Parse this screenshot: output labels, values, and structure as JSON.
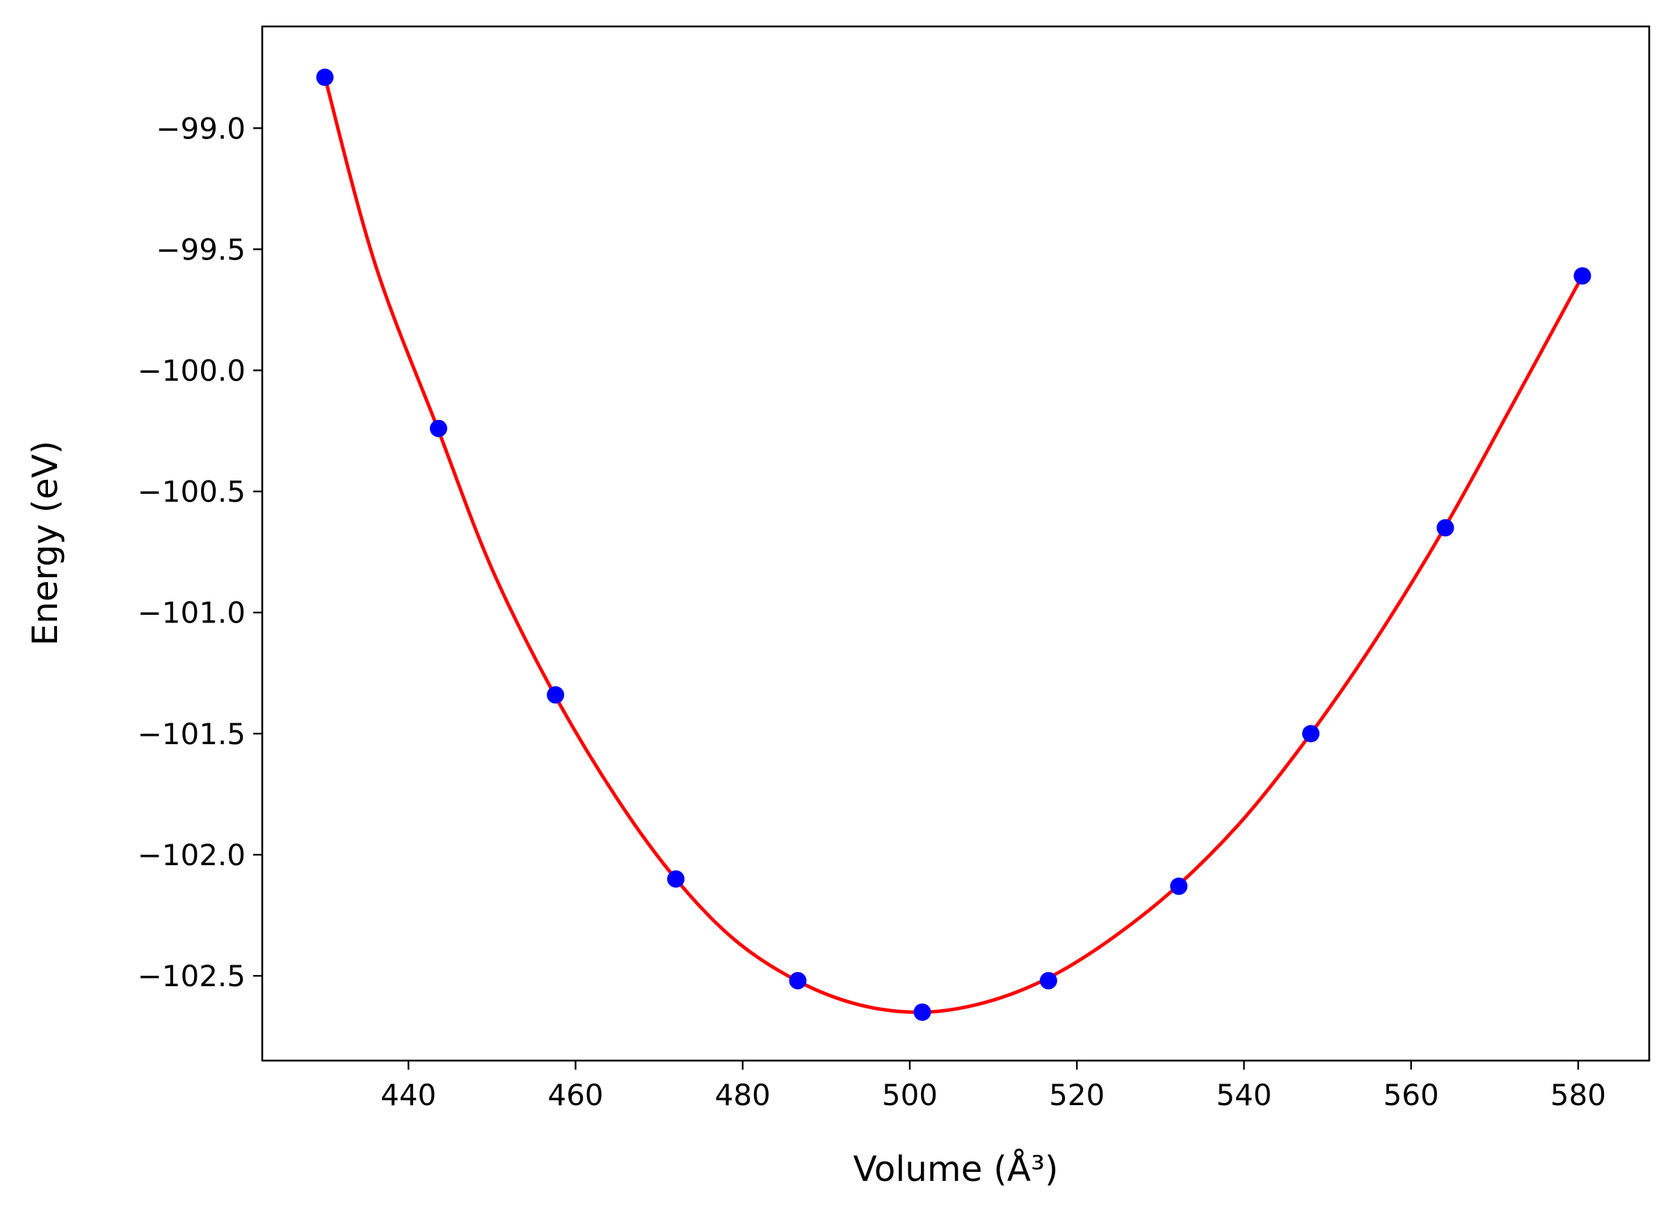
{
  "chart_data": {
    "type": "line",
    "xlabel": "Volume (Å³)",
    "ylabel": "Energy (eV)",
    "xlim": [
      422.5,
      588.5
    ],
    "ylim": [
      -102.85,
      -98.58
    ],
    "x_ticks": [
      440,
      460,
      480,
      500,
      520,
      540,
      560,
      580
    ],
    "x_tick_labels": [
      "440",
      "460",
      "480",
      "500",
      "520",
      "540",
      "560",
      "580"
    ],
    "y_ticks": [
      -99.0,
      -99.5,
      -100.0,
      -100.5,
      -101.0,
      -101.5,
      -102.0,
      -102.5
    ],
    "y_tick_labels": [
      "−99.0",
      "−99.5",
      "−100.0",
      "−100.5",
      "−101.0",
      "−101.5",
      "−102.0",
      "−102.5"
    ],
    "grid": false,
    "series": [
      {
        "kind": "line",
        "color": "#ff0000",
        "x": [
          430.0,
          436.0,
          443.5,
          450.0,
          457.5,
          465.0,
          472.0,
          479.0,
          486.5,
          494.0,
          501.5,
          509.0,
          516.5,
          524.0,
          532.0,
          540.0,
          548.0,
          556.0,
          564.0,
          572.0,
          580.5
        ],
        "y": [
          -98.79,
          -99.56,
          -100.24,
          -100.82,
          -101.34,
          -101.77,
          -102.1,
          -102.35,
          -102.52,
          -102.62,
          -102.65,
          -102.61,
          -102.51,
          -102.35,
          -102.13,
          -101.85,
          -101.5,
          -101.1,
          -100.65,
          -100.15,
          -99.61
        ]
      },
      {
        "kind": "scatter",
        "color": "#0000ff",
        "x": [
          430.0,
          443.6,
          457.6,
          472.0,
          486.6,
          501.5,
          516.6,
          532.2,
          548.0,
          564.1,
          580.5
        ],
        "y": [
          -98.79,
          -100.24,
          -101.34,
          -102.1,
          -102.52,
          -102.65,
          -102.52,
          -102.13,
          -101.5,
          -100.65,
          -99.61
        ]
      }
    ]
  }
}
